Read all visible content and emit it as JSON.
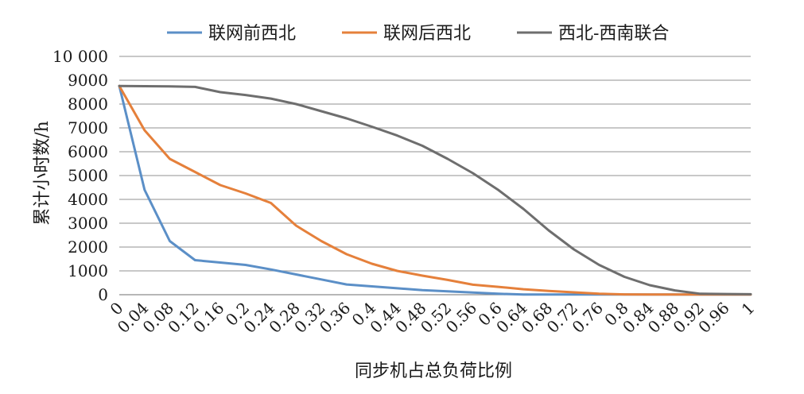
{
  "chart_data": {
    "type": "line",
    "title": "",
    "xlabel": "同步机占总负荷比例",
    "ylabel": "累计小时数/h",
    "x": [
      0,
      0.04,
      0.08,
      0.12,
      0.16,
      0.2,
      0.24,
      0.28,
      0.32,
      0.36,
      0.4,
      0.44,
      0.48,
      0.52,
      0.56,
      0.6,
      0.64,
      0.68,
      0.72,
      0.76,
      0.8,
      0.84,
      0.88,
      0.92,
      0.96,
      1
    ],
    "x_tick_labels": [
      "0",
      "0.04",
      "0.08",
      "0.12",
      "0.16",
      "0.2",
      "0.24",
      "0.28",
      "0.32",
      "0.36",
      "0.4",
      "0.44",
      "0.48",
      "0.52",
      "0.56",
      "0.6",
      "0.64",
      "0.68",
      "0.72",
      "0.76",
      "0.8",
      "0.84",
      "0.88",
      "0.92",
      "0.96",
      "1"
    ],
    "ylim": [
      0,
      10000
    ],
    "y_ticks": [
      0,
      1000,
      2000,
      3000,
      4000,
      5000,
      6000,
      7000,
      8000,
      9000,
      10000
    ],
    "y_tick_labels": [
      "0",
      "1000",
      "2000",
      "3000",
      "4000",
      "5000",
      "6000",
      "7000",
      "8000",
      "9000",
      "10 000"
    ],
    "grid": "horizontal",
    "legend_position": "top-center",
    "series": [
      {
        "name": "联网前西北",
        "color": "#5b8fc7",
        "values": [
          8760,
          4400,
          2250,
          1450,
          1350,
          1250,
          1060,
          850,
          640,
          430,
          350,
          270,
          190,
          140,
          90,
          40,
          10,
          10,
          10,
          10,
          10,
          10,
          10,
          10,
          10,
          10
        ]
      },
      {
        "name": "联网后西北",
        "color": "#e5803b",
        "values": [
          8760,
          6900,
          5700,
          5150,
          4600,
          4250,
          3850,
          2900,
          2250,
          1700,
          1300,
          1000,
          800,
          620,
          420,
          330,
          230,
          160,
          100,
          40,
          15,
          10,
          10,
          10,
          10,
          10
        ]
      },
      {
        "name": "西北-西南联合",
        "color": "#6e6e6e",
        "values": [
          8760,
          8750,
          8740,
          8720,
          8500,
          8380,
          8230,
          8000,
          7700,
          7400,
          7050,
          6680,
          6250,
          5700,
          5100,
          4400,
          3600,
          2700,
          1900,
          1250,
          750,
          400,
          180,
          40,
          30,
          20
        ]
      }
    ]
  }
}
